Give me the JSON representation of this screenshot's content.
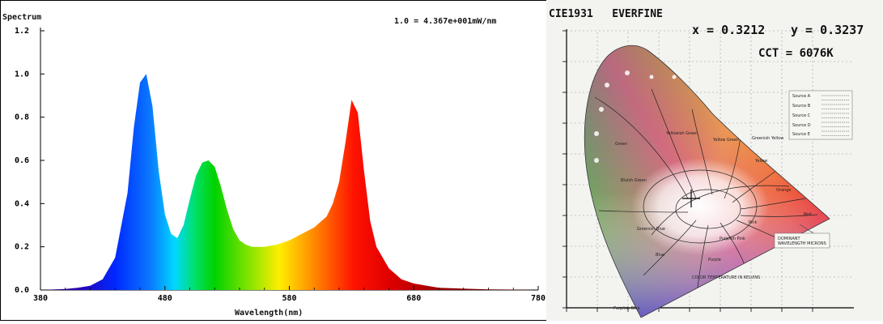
{
  "chart_data": [
    {
      "type": "area",
      "title": "Spectrum",
      "annotation": "1.0 = 4.367e+001mW/nm",
      "xlabel": "Wavelength(nm)",
      "ylabel": "",
      "xlim": [
        380,
        780
      ],
      "ylim": [
        0,
        1.2
      ],
      "x_ticks": [
        "380",
        "480",
        "580",
        "680",
        "780"
      ],
      "y_ticks": [
        "0.0",
        "0.2",
        "0.4",
        "0.6",
        "0.8",
        "1.0",
        "1.2"
      ],
      "grid": false,
      "fill": "wavelength-colored gradient",
      "x": [
        380,
        400,
        410,
        420,
        430,
        440,
        450,
        455,
        460,
        465,
        470,
        475,
        480,
        485,
        490,
        495,
        500,
        505,
        510,
        515,
        520,
        525,
        530,
        535,
        540,
        545,
        550,
        560,
        570,
        580,
        590,
        600,
        610,
        615,
        620,
        625,
        630,
        635,
        640,
        645,
        650,
        660,
        670,
        680,
        700,
        720,
        740,
        760,
        780
      ],
      "values": [
        0.0,
        0.005,
        0.01,
        0.02,
        0.05,
        0.15,
        0.45,
        0.75,
        0.96,
        1.0,
        0.85,
        0.55,
        0.35,
        0.26,
        0.24,
        0.3,
        0.42,
        0.53,
        0.59,
        0.6,
        0.57,
        0.48,
        0.37,
        0.28,
        0.23,
        0.21,
        0.2,
        0.2,
        0.21,
        0.23,
        0.26,
        0.29,
        0.34,
        0.4,
        0.5,
        0.68,
        0.88,
        0.82,
        0.55,
        0.32,
        0.2,
        0.1,
        0.05,
        0.03,
        0.01,
        0.006,
        0.003,
        0.002,
        0.0
      ]
    },
    {
      "type": "scatter",
      "title": "CIE1931   EVERFINE",
      "x_text": "x = 0.3212",
      "y_text": "y = 0.3237",
      "cct_text": "CCT = 6076K",
      "x": [
        0.3212
      ],
      "y": [
        0.3237
      ]
    }
  ],
  "cie": {
    "source_labels": [
      "Source A",
      "Source B",
      "Source C",
      "Source D",
      "Source E"
    ],
    "region_labels": [
      "Green",
      "Yellowish Green",
      "Yellow Green",
      "Greenish Yellow",
      "Yellow",
      "Orange",
      "Red",
      "Pink",
      "Purplish Pink",
      "Purple",
      "Bluish Green",
      "Blue",
      "Purplish Blue",
      "Greenish Blue"
    ],
    "wavelength_note": "DOMINANT WAVELENGTH MICRONS",
    "bottom_note": "COLOR TEMPERATURE IN KELVINS"
  },
  "colors": {
    "text": "#111111",
    "axis": "#000000"
  }
}
